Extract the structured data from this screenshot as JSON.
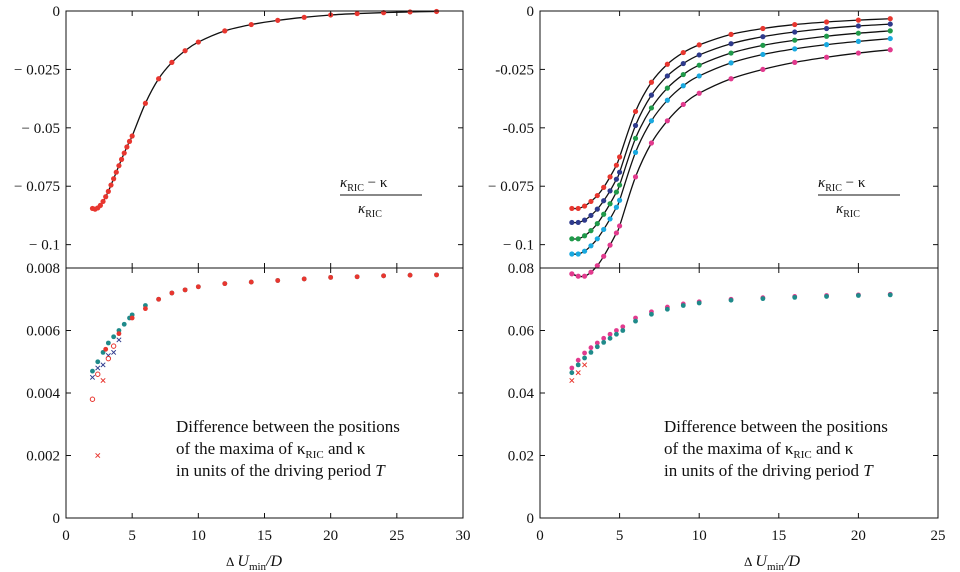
{
  "colors": {
    "red": "#e8362f",
    "navy": "#2e3a8c",
    "green": "#1f9a4a",
    "cyan": "#19a9e0",
    "magenta": "#e23a8e",
    "teal": "#1f8a8a",
    "axis": "#111111",
    "curve": "#111111"
  },
  "x_axis_label": {
    "prefix": "Δ",
    "var": "U",
    "sub": "min",
    "suffix": "/D"
  },
  "ratio_label": {
    "num_left": "κ",
    "num_sub": "RIC",
    "num_right": " − κ",
    "den": "κ",
    "den_sub": "RIC"
  },
  "note_lines": [
    "Difference between the positions",
    "of the maxima of κ",
    " and κ",
    "in units of the driving period ",
    "T"
  ],
  "note_sub": "RIC",
  "chart_data": [
    {
      "type": "line",
      "panel": "top-left",
      "xlim": [
        0,
        30
      ],
      "ylim": [
        -0.11,
        0
      ],
      "yticks": [
        -0.1,
        -0.075,
        -0.05,
        -0.025,
        0
      ],
      "ytick_labels": [
        "− 0.1",
        "− 0.075",
        "− 0.05",
        "− 0.025",
        "0"
      ],
      "series": [
        {
          "color": "red",
          "x": [
            2,
            2.2,
            2.4,
            2.6,
            2.8,
            3,
            3.2,
            3.4,
            3.6,
            3.8,
            4,
            4.2,
            4.4,
            4.6,
            4.8,
            5,
            6,
            7,
            8,
            9,
            10,
            12,
            14,
            16,
            18,
            20,
            22,
            24,
            26,
            28
          ],
          "values": [
            -0.0845,
            -0.0848,
            -0.0843,
            -0.0832,
            -0.0815,
            -0.0795,
            -0.0772,
            -0.0745,
            -0.0718,
            -0.069,
            -0.0662,
            -0.0635,
            -0.0608,
            -0.0582,
            -0.0558,
            -0.0535,
            -0.0395,
            -0.029,
            -0.022,
            -0.017,
            -0.0133,
            -0.0085,
            -0.0058,
            -0.004,
            -0.0027,
            -0.0017,
            -0.0011,
            -0.0007,
            -0.0004,
            -0.0002
          ]
        }
      ]
    },
    {
      "type": "line",
      "panel": "top-right",
      "xlim": [
        0,
        25
      ],
      "ylim": [
        -0.11,
        0
      ],
      "yticks": [
        -0.1,
        -0.075,
        -0.05,
        -0.025,
        0
      ],
      "ytick_labels": [
        "− 0.1",
        "− 0.075",
        "-0.05",
        "-0.025",
        "0"
      ],
      "series": [
        {
          "color": "red",
          "x": [
            2,
            2.4,
            2.8,
            3.2,
            3.6,
            4,
            4.4,
            4.8,
            5,
            6,
            7,
            8,
            9,
            10,
            12,
            14,
            16,
            18,
            20,
            22
          ],
          "values": [
            -0.0845,
            -0.0845,
            -0.0835,
            -0.0815,
            -0.079,
            -0.0755,
            -0.071,
            -0.066,
            -0.0625,
            -0.043,
            -0.0305,
            -0.0228,
            -0.0178,
            -0.0145,
            -0.01,
            -0.0075,
            -0.0058,
            -0.0047,
            -0.0039,
            -0.0033
          ]
        },
        {
          "color": "navy",
          "x": [
            2,
            2.4,
            2.8,
            3.2,
            3.6,
            4,
            4.4,
            4.8,
            5,
            6,
            7,
            8,
            9,
            10,
            12,
            14,
            16,
            18,
            20,
            22
          ],
          "values": [
            -0.0905,
            -0.0905,
            -0.0895,
            -0.0875,
            -0.0848,
            -0.0812,
            -0.077,
            -0.072,
            -0.069,
            -0.049,
            -0.036,
            -0.0278,
            -0.0225,
            -0.0188,
            -0.014,
            -0.011,
            -0.009,
            -0.0075,
            -0.0064,
            -0.0056
          ]
        },
        {
          "color": "green",
          "x": [
            2,
            2.4,
            2.8,
            3.2,
            3.6,
            4,
            4.4,
            4.8,
            5,
            6,
            7,
            8,
            9,
            10,
            12,
            14,
            16,
            18,
            20,
            22
          ],
          "values": [
            -0.0975,
            -0.0975,
            -0.0962,
            -0.094,
            -0.091,
            -0.087,
            -0.0825,
            -0.0775,
            -0.0745,
            -0.0545,
            -0.0415,
            -0.033,
            -0.0272,
            -0.0232,
            -0.018,
            -0.0147,
            -0.0125,
            -0.0108,
            -0.0095,
            -0.0085
          ]
        },
        {
          "color": "cyan",
          "x": [
            2,
            2.4,
            2.8,
            3.2,
            3.6,
            4,
            4.4,
            4.8,
            5,
            6,
            7,
            8,
            9,
            10,
            12,
            14,
            16,
            18,
            20,
            22
          ],
          "values": [
            -0.104,
            -0.104,
            -0.1028,
            -0.1005,
            -0.0975,
            -0.0935,
            -0.089,
            -0.084,
            -0.081,
            -0.0605,
            -0.047,
            -0.0382,
            -0.032,
            -0.0278,
            -0.0222,
            -0.0186,
            -0.0162,
            -0.0144,
            -0.013,
            -0.0118
          ]
        },
        {
          "color": "magenta",
          "x": [
            2,
            2.4,
            2.8,
            3.2,
            3.6,
            4,
            4.4,
            4.8,
            5,
            6,
            7,
            8,
            9,
            10,
            12,
            14,
            16,
            18,
            20,
            22
          ],
          "values": [
            -0.1125,
            -0.1135,
            -0.1135,
            -0.1118,
            -0.109,
            -0.105,
            -0.1002,
            -0.095,
            -0.092,
            -0.071,
            -0.0565,
            -0.047,
            -0.04,
            -0.0352,
            -0.029,
            -0.025,
            -0.022,
            -0.0198,
            -0.018,
            -0.0166
          ]
        }
      ]
    },
    {
      "type": "scatter",
      "panel": "bottom-left",
      "xlim": [
        0,
        30
      ],
      "ylim": [
        0,
        0.008
      ],
      "xticks": [
        0,
        5,
        10,
        15,
        20,
        25,
        30
      ],
      "xtick_labels": [
        "0",
        "5",
        "10",
        "15",
        "20",
        "25",
        "30"
      ],
      "yticks": [
        0,
        0.002,
        0.004,
        0.006,
        0.008
      ],
      "ytick_labels": [
        "0",
        "0.002",
        "0.004",
        "0.006",
        "0.008"
      ],
      "series": [
        {
          "color": "teal",
          "marker": "dot",
          "x": [
            2,
            2.4,
            2.8,
            3.2,
            3.6,
            4,
            4.4,
            4.8,
            5,
            6,
            7,
            8,
            9,
            10,
            12,
            14,
            16,
            18,
            20,
            22,
            24,
            26,
            28
          ],
          "values": [
            0.0047,
            0.005,
            0.0053,
            0.0056,
            0.0058,
            0.006,
            0.0062,
            0.0064,
            0.0065,
            0.0068,
            0.007,
            0.0072,
            0.0073,
            0.0074,
            0.0075,
            0.00755,
            0.0076,
            0.00765,
            0.0077,
            0.00772,
            0.00775,
            0.00777,
            0.00778
          ]
        },
        {
          "color": "red",
          "marker": "dot",
          "x": [
            3,
            4,
            5,
            6,
            7,
            8,
            9,
            10,
            12,
            14,
            16,
            18,
            20,
            22,
            24,
            26,
            28
          ],
          "values": [
            0.0054,
            0.0059,
            0.0064,
            0.0067,
            0.007,
            0.0072,
            0.0073,
            0.0074,
            0.0075,
            0.00755,
            0.0076,
            0.00765,
            0.0077,
            0.00772,
            0.00775,
            0.00777,
            0.00778
          ]
        },
        {
          "color": "navy",
          "marker": "cross",
          "x": [
            2,
            2.4,
            2.8,
            3.2,
            3.6,
            4
          ],
          "values": [
            0.0045,
            0.0048,
            0.0049,
            0.0052,
            0.0053,
            0.0057
          ]
        },
        {
          "color": "red",
          "marker": "circle",
          "x": [
            2,
            2.4,
            3.2,
            3.6
          ],
          "values": [
            0.0038,
            0.0046,
            0.0051,
            0.0055
          ]
        },
        {
          "color": "red",
          "marker": "cross",
          "x": [
            2.4,
            2.8
          ],
          "values": [
            0.002,
            0.0044
          ]
        }
      ]
    },
    {
      "type": "scatter",
      "panel": "bottom-right",
      "xlim": [
        0,
        25
      ],
      "ylim": [
        0,
        0.08
      ],
      "xticks": [
        0,
        5,
        10,
        15,
        20,
        25
      ],
      "xtick_labels": [
        "0",
        "5",
        "10",
        "15",
        "20",
        "25"
      ],
      "yticks": [
        0,
        0.02,
        0.04,
        0.06,
        0.08
      ],
      "ytick_labels": [
        "0",
        "0.02",
        "0.04",
        "0.06",
        "0.08"
      ],
      "series": [
        {
          "color": "magenta",
          "marker": "dot",
          "x": [
            2,
            2.4,
            2.8,
            3.2,
            3.6,
            4,
            4.4,
            4.8,
            5.2,
            6,
            7,
            8,
            9,
            10,
            12,
            14,
            16,
            18,
            20,
            22
          ],
          "values": [
            0.048,
            0.0505,
            0.0528,
            0.0545,
            0.056,
            0.0575,
            0.0588,
            0.06,
            0.0612,
            0.064,
            0.066,
            0.0675,
            0.0685,
            0.0692,
            0.07,
            0.0705,
            0.0709,
            0.0712,
            0.0714,
            0.0716
          ]
        },
        {
          "color": "teal",
          "marker": "dot",
          "x": [
            2,
            2.4,
            2.8,
            3.2,
            3.6,
            4,
            4.4,
            4.8,
            5.2,
            6,
            7,
            8,
            9,
            10,
            12,
            14,
            16,
            18,
            20,
            22
          ],
          "values": [
            0.0465,
            0.049,
            0.0512,
            0.053,
            0.0548,
            0.0562,
            0.0575,
            0.0588,
            0.06,
            0.063,
            0.0652,
            0.0668,
            0.068,
            0.0688,
            0.0697,
            0.0702,
            0.0706,
            0.0709,
            0.0712,
            0.0714
          ]
        },
        {
          "color": "red",
          "marker": "cross",
          "x": [
            2,
            2.4,
            2.8
          ],
          "values": [
            0.044,
            0.0465,
            0.049
          ]
        }
      ]
    }
  ]
}
